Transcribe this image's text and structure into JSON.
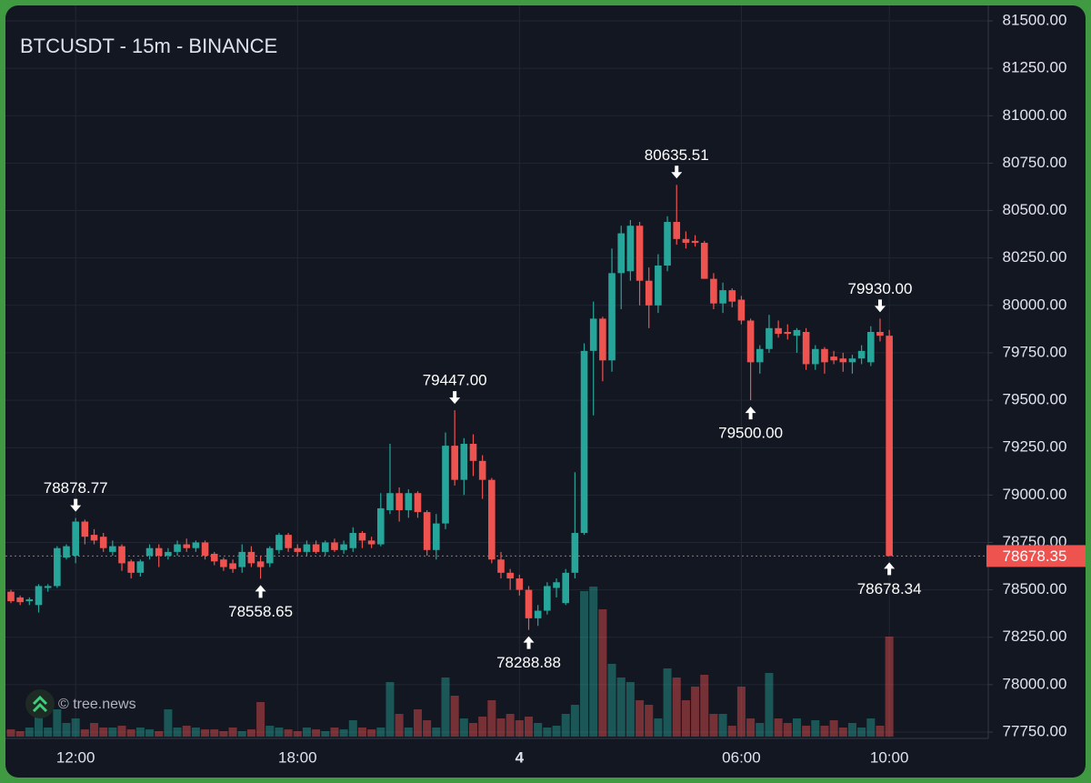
{
  "chart_data": {
    "type": "candlestick",
    "title": "BTCUSDT - 15m - BINANCE",
    "watermark": "© tree.news",
    "up_color": "#26a69a",
    "down_color": "#ef5350",
    "grid": true,
    "categories": [
      null,
      null,
      null,
      null,
      null,
      null,
      null,
      "12:00",
      null,
      null,
      null,
      null,
      null,
      null,
      null,
      null,
      null,
      null,
      null,
      null,
      null,
      null,
      null,
      null,
      null,
      null,
      null,
      null,
      null,
      null,
      null,
      "18:00",
      null,
      null,
      null,
      null,
      null,
      null,
      null,
      null,
      null,
      null,
      null,
      null,
      null,
      null,
      null,
      null,
      null,
      null,
      null,
      null,
      null,
      null,
      null,
      "4",
      null,
      null,
      null,
      null,
      null,
      null,
      null,
      null,
      null,
      null,
      null,
      null,
      null,
      null,
      null,
      null,
      null,
      null,
      null,
      null,
      null,
      null,
      null,
      "06:00",
      null,
      null,
      null,
      null,
      null,
      null,
      null,
      null,
      null,
      null,
      null,
      null,
      null,
      null,
      null,
      "10:00"
    ],
    "open": [
      78490,
      78460,
      78440,
      78420,
      78510,
      78520,
      78670,
      78680,
      78860,
      78790,
      78780,
      78700,
      78730,
      78650,
      78590,
      78680,
      78720,
      78680,
      78700,
      78740,
      78720,
      78750,
      78690,
      78660,
      78640,
      78620,
      78700,
      78650,
      78640,
      78710,
      78790,
      78720,
      78700,
      78740,
      78700,
      78750,
      78710,
      78720,
      78800,
      78760,
      78740,
      78920,
      79010,
      78920,
      79010,
      78910,
      78710,
      78850,
      79260,
      79080,
      79270,
      79180,
      79080,
      78660,
      78590,
      78560,
      78500,
      78350,
      78390,
      78510,
      78430,
      78590,
      78800,
      79760,
      79930,
      79710,
      80170,
      80180,
      80420,
      80130,
      80000,
      80210,
      80440,
      80350,
      80340,
      80330,
      80140,
      80010,
      80080,
      80030,
      79920,
      79700,
      79770,
      79880,
      79860,
      79840,
      79860,
      79690,
      79770,
      79730,
      79720,
      79700,
      79720,
      79700,
      79860,
      79840
    ],
    "high": [
      78500,
      78470,
      78460,
      78530,
      78530,
      78730,
      78740,
      78878.77,
      78870,
      78820,
      78800,
      78760,
      78740,
      78660,
      78660,
      78740,
      78740,
      78720,
      78760,
      78770,
      78760,
      78760,
      78700,
      78670,
      78660,
      78740,
      78730,
      78680,
      78730,
      78800,
      78800,
      78740,
      78760,
      78760,
      78760,
      78770,
      78760,
      78830,
      78810,
      78780,
      79010,
      79270,
      79040,
      79030,
      79020,
      78920,
      78900,
      79330,
      79447,
      79300,
      79320,
      79210,
      79090,
      78700,
      78610,
      78580,
      78520,
      78420,
      78540,
      78560,
      78610,
      79120,
      79800,
      80020,
      79940,
      80300,
      80420,
      80450,
      80440,
      80200,
      80270,
      80470,
      80635.51,
      80390,
      80370,
      80340,
      80170,
      80120,
      80090,
      80050,
      79930,
      79790,
      79950,
      79920,
      79900,
      79880,
      79880,
      79790,
      79780,
      79760,
      79750,
      79740,
      79790,
      79890,
      79930,
      79870
    ],
    "low": [
      78430,
      78420,
      78420,
      78380,
      78490,
      78510,
      78660,
      78640,
      78740,
      78740,
      78700,
      78680,
      78600,
      78560,
      78570,
      78660,
      78620,
      78660,
      78680,
      78700,
      78700,
      78660,
      78630,
      78600,
      78590,
      78590,
      78620,
      78558.65,
      78620,
      78690,
      78700,
      78680,
      78680,
      78690,
      78680,
      78700,
      78690,
      78700,
      78720,
      78720,
      78730,
      78900,
      78860,
      78880,
      78880,
      78680,
      78660,
      78820,
      79050,
      79000,
      79100,
      78980,
      78640,
      78560,
      78500,
      78470,
      78288.88,
      78310,
      78370,
      78460,
      78420,
      78560,
      78790,
      79420,
      79600,
      79650,
      79980,
      80130,
      80000,
      79880,
      79960,
      80180,
      80320,
      80300,
      80310,
      80140,
      79980,
      79960,
      79990,
      79900,
      79500,
      79640,
      79750,
      79830,
      79820,
      79750,
      79660,
      79660,
      79640,
      79690,
      79650,
      79640,
      79690,
      79680,
      79810,
      78678.34
    ],
    "close": [
      78440,
      78435,
      78450,
      78520,
      78520,
      78720,
      78730,
      78860,
      78780,
      78760,
      78720,
      78730,
      78640,
      78590,
      78650,
      78720,
      78680,
      78700,
      78740,
      78720,
      78750,
      78680,
      78650,
      78620,
      78610,
      78700,
      78640,
      78620,
      78720,
      78790,
      78720,
      78700,
      78740,
      78700,
      78750,
      78710,
      78740,
      78800,
      78760,
      78740,
      78930,
      79010,
      78920,
      79010,
      78910,
      78710,
      78850,
      79260,
      79080,
      79270,
      79180,
      79080,
      78660,
      78590,
      78560,
      78500,
      78350,
      78390,
      78520,
      78540,
      78590,
      78800,
      79760,
      79930,
      79710,
      80170,
      80380,
      80420,
      80130,
      80000,
      80210,
      80440,
      80350,
      80330,
      80330,
      80140,
      80010,
      80080,
      80020,
      79920,
      79700,
      79770,
      79880,
      79850,
      79850,
      79870,
      79690,
      79770,
      79700,
      79710,
      79700,
      79720,
      79760,
      79860,
      79840,
      78678.35
    ],
    "volume": [
      8,
      6,
      10,
      25,
      10,
      30,
      15,
      20,
      8,
      15,
      10,
      10,
      12,
      8,
      10,
      8,
      6,
      30,
      10,
      12,
      10,
      8,
      8,
      6,
      10,
      6,
      8,
      38,
      12,
      10,
      8,
      6,
      10,
      8,
      6,
      10,
      8,
      18,
      10,
      8,
      10,
      60,
      25,
      10,
      30,
      18,
      10,
      65,
      45,
      20,
      15,
      22,
      40,
      20,
      25,
      18,
      22,
      15,
      10,
      12,
      25,
      35,
      160,
      165,
      140,
      80,
      65,
      60,
      40,
      35,
      20,
      75,
      65,
      40,
      55,
      68,
      25,
      25,
      12,
      55,
      20,
      15,
      70,
      20,
      15,
      20,
      12,
      18,
      12,
      18,
      10,
      15,
      10,
      20,
      12,
      110
    ],
    "high_labels": [
      null,
      null,
      null,
      null,
      null,
      null,
      null,
      "78878.77",
      null,
      null,
      null,
      null,
      null,
      null,
      null,
      null,
      null,
      null,
      null,
      null,
      null,
      null,
      null,
      null,
      null,
      null,
      null,
      null,
      null,
      null,
      null,
      null,
      null,
      null,
      null,
      null,
      null,
      null,
      null,
      null,
      null,
      null,
      null,
      null,
      null,
      null,
      null,
      null,
      "79447.00",
      null,
      null,
      null,
      null,
      null,
      null,
      null,
      null,
      null,
      null,
      null,
      null,
      null,
      null,
      null,
      null,
      null,
      null,
      null,
      null,
      null,
      null,
      null,
      "80635.51",
      null,
      null,
      null,
      null,
      null,
      null,
      null,
      null,
      null,
      null,
      null,
      null,
      null,
      null,
      null,
      null,
      null,
      null,
      null,
      null,
      null,
      "79930.00",
      null
    ],
    "low_labels": [
      null,
      null,
      null,
      null,
      null,
      null,
      null,
      null,
      null,
      null,
      null,
      null,
      null,
      null,
      null,
      null,
      null,
      null,
      null,
      null,
      null,
      null,
      null,
      null,
      null,
      null,
      null,
      "78558.65",
      null,
      null,
      null,
      null,
      null,
      null,
      null,
      null,
      null,
      null,
      null,
      null,
      null,
      null,
      null,
      null,
      null,
      null,
      null,
      null,
      null,
      null,
      null,
      null,
      null,
      null,
      null,
      null,
      "78288.88",
      null,
      null,
      null,
      null,
      null,
      null,
      null,
      null,
      null,
      null,
      null,
      null,
      null,
      null,
      null,
      null,
      null,
      null,
      null,
      null,
      null,
      null,
      null,
      "79500.00",
      null,
      null,
      null,
      null,
      null,
      null,
      null,
      null,
      null,
      null,
      null,
      null,
      null,
      null,
      "78678.34"
    ],
    "last_price_label": "78678.35",
    "ylim": [
      77750,
      81500
    ],
    "yticks": [
      {
        "value": 77750,
        "label": "77750.00"
      },
      {
        "value": 78000,
        "label": "78000.00"
      },
      {
        "value": 78250,
        "label": "78250.00"
      },
      {
        "value": 78500,
        "label": "78500.00"
      },
      {
        "value": 78750,
        "label": "78750.00"
      },
      {
        "value": 79000,
        "label": "79000.00"
      },
      {
        "value": 79250,
        "label": "79250.00"
      },
      {
        "value": 79500,
        "label": "79500.00"
      },
      {
        "value": 79750,
        "label": "79750.00"
      },
      {
        "value": 80000,
        "label": "80000.00"
      },
      {
        "value": 80250,
        "label": "80250.00"
      },
      {
        "value": 80500,
        "label": "80500.00"
      },
      {
        "value": 80750,
        "label": "80750.00"
      },
      {
        "value": 81000,
        "label": "81000.00"
      },
      {
        "value": 81250,
        "label": "81250.00"
      },
      {
        "value": 81500,
        "label": "81500.00"
      }
    ]
  }
}
